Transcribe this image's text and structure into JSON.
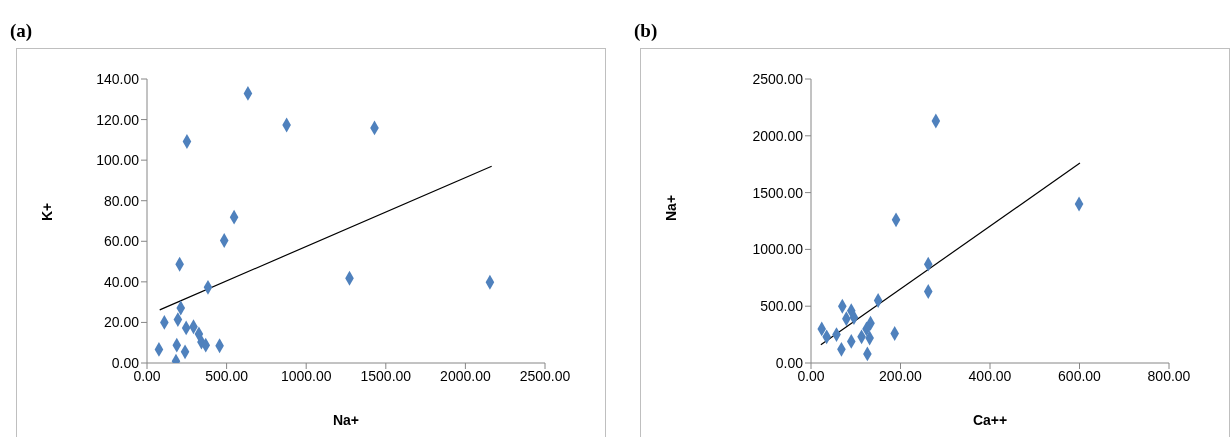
{
  "chart_data": [
    {
      "type": "scatter",
      "title": "(a)",
      "xlabel": "Na+",
      "ylabel": "K+",
      "grid": false,
      "xlim": [
        0,
        2500
      ],
      "xticks": [
        {
          "value": 0,
          "label": "0.00"
        },
        {
          "value": 500,
          "label": "500.00"
        },
        {
          "value": 1000,
          "label": "1000.00"
        },
        {
          "value": 1500,
          "label": "1500.00"
        },
        {
          "value": 2000,
          "label": "2000.00"
        },
        {
          "value": 2500,
          "label": "2500.00"
        }
      ],
      "ylim": [
        0,
        140
      ],
      "yticks": [
        {
          "value": 0,
          "label": "0.00"
        },
        {
          "value": 20,
          "label": "20.00"
        },
        {
          "value": 40,
          "label": "40.00"
        },
        {
          "value": 60,
          "label": "60.00"
        },
        {
          "value": 80,
          "label": "80.00"
        },
        {
          "value": 100,
          "label": "100.00"
        },
        {
          "value": 120,
          "label": "120.00"
        },
        {
          "value": 140,
          "label": "140.00"
        }
      ],
      "series": [
        {
          "marker": "diamond",
          "color": "#4f81bd",
          "x": [
            634,
            877,
            1429,
            251,
            547,
            485,
            205,
            1272,
            2154,
            383,
            212,
            109,
            194,
            246,
            292,
            326,
            342,
            369,
            456,
            75,
            187,
            239,
            182
          ],
          "values": [
            132.9,
            117.3,
            115.9,
            109.2,
            71.9,
            60.4,
            48.7,
            41.8,
            39.8,
            37.3,
            27.1,
            20.0,
            21.4,
            17.3,
            17.9,
            14.3,
            10.3,
            8.8,
            8.5,
            6.7,
            8.8,
            5.5,
            0.9
          ]
        },
        {
          "type": "line",
          "marker": "none",
          "color": "#000000",
          "x": [
            80,
            2165
          ],
          "values": [
            26.2,
            97
          ]
        }
      ]
    },
    {
      "type": "scatter",
      "title": "(b)",
      "xlabel": "Ca++",
      "ylabel": "Na+",
      "grid": false,
      "xlim": [
        0,
        800
      ],
      "xticks": [
        {
          "value": 0,
          "label": "0.00"
        },
        {
          "value": 200,
          "label": "200.00"
        },
        {
          "value": 400,
          "label": "400.00"
        },
        {
          "value": 600,
          "label": "600.00"
        },
        {
          "value": 800,
          "label": "800.00"
        }
      ],
      "ylim": [
        0,
        2500
      ],
      "yticks": [
        {
          "value": 0,
          "label": "0.00"
        },
        {
          "value": 500,
          "label": "500.00"
        },
        {
          "value": 1000,
          "label": "1000.00"
        },
        {
          "value": 1500,
          "label": "1500.00"
        },
        {
          "value": 2000,
          "label": "2000.00"
        },
        {
          "value": 2500,
          "label": "2500.00"
        }
      ],
      "series": [
        {
          "marker": "diamond",
          "color": "#4f81bd",
          "x": [
            279,
            599,
            190,
            262,
            262,
            150,
            187,
            70,
            90,
            96,
            133,
            24,
            35,
            57,
            68,
            90,
            113,
            124,
            131,
            126,
            79
          ],
          "values": [
            2130,
            1400,
            1260,
            870,
            630,
            550,
            260,
            500,
            460,
            400,
            350,
            300,
            230,
            250,
            120,
            190,
            230,
            300,
            220,
            80,
            390
          ]
        },
        {
          "type": "line",
          "marker": "none",
          "color": "#000000",
          "x": [
            22,
            601
          ],
          "values": [
            160,
            1760
          ]
        }
      ]
    }
  ]
}
